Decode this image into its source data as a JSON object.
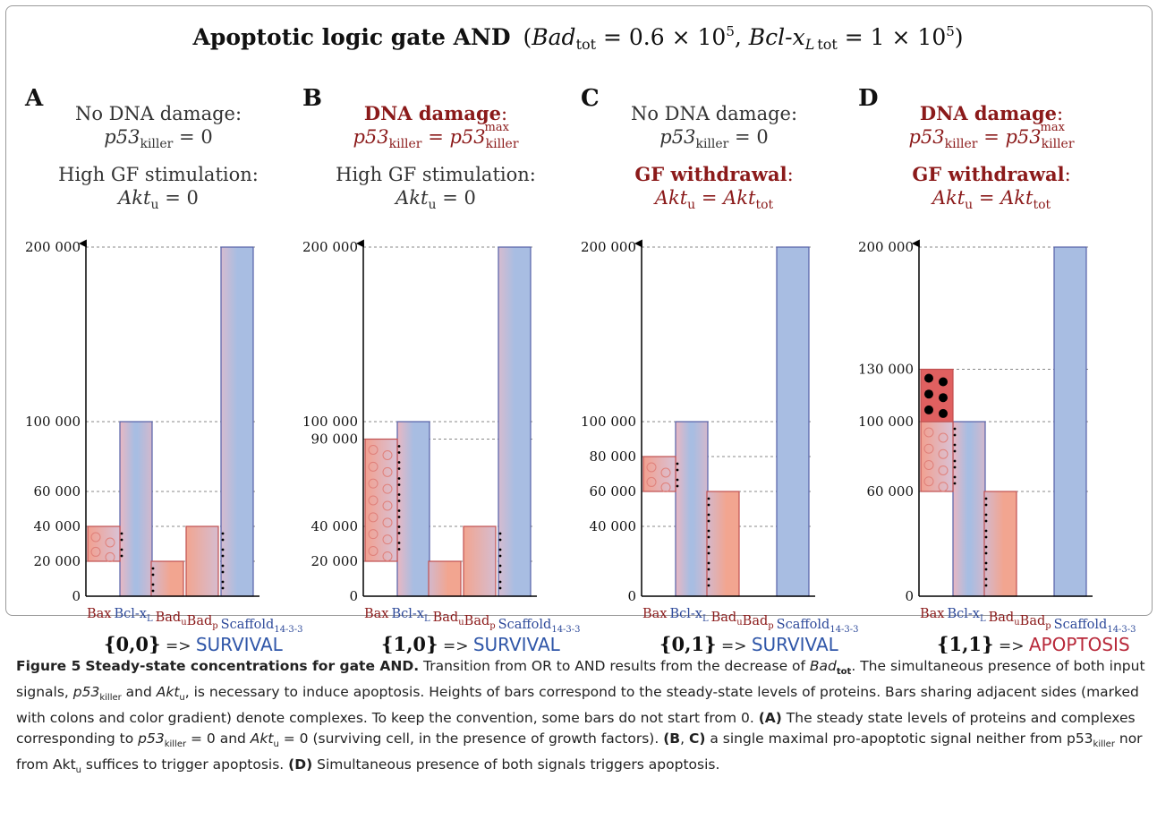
{
  "figure": {
    "title_main": "Apoptotic logic gate AND",
    "title_params": {
      "bad_sym": "Bad",
      "bad_sub": "tot",
      "bad_val": " = 0.6 × 10",
      "bad_exp": "5",
      "bcl_sym": "Bcl-x",
      "bcl_sub_L": "L",
      "bcl_sub_tot": "tot",
      "bcl_val": " = 1 × 10",
      "bcl_exp": "5"
    }
  },
  "colors": {
    "blue": "#a8bde2",
    "blue_stroke": "#5560a8",
    "red_light": "#f1a596",
    "red_dark": "#e06060",
    "red_stroke": "#c05050",
    "dark_red_text": "#8b1a1a",
    "blue_text": "#2e4a9a",
    "axis": "#000000",
    "grid": "#888888"
  },
  "panels": [
    {
      "letter": "A",
      "cond1": {
        "label": "No DNA damage:",
        "eq_lhs": "p53",
        "eq_lhs_sub": "killer",
        "eq_rhs": "0",
        "highlight": false
      },
      "cond2": {
        "label": "High GF stimulation:",
        "eq_lhs": "Akt",
        "eq_lhs_sub": "u",
        "eq_rhs": "0",
        "highlight": false
      },
      "result": {
        "input": "{0,0}",
        "arrow": "=>",
        "outcome": "SURVIVAL",
        "apoptosis": false
      }
    },
    {
      "letter": "B",
      "cond1": {
        "label": "DNA damage",
        "eq_lhs": "p53",
        "eq_lhs_sub": "killer",
        "eq_rhs": "p53",
        "eq_rhs_sub": "killer",
        "eq_rhs_sup": "max",
        "highlight": true
      },
      "cond2": {
        "label": "High GF stimulation:",
        "eq_lhs": "Akt",
        "eq_lhs_sub": "u",
        "eq_rhs": "0",
        "highlight": false
      },
      "result": {
        "input": "{1,0}",
        "arrow": "=>",
        "outcome": "SURVIVAL",
        "apoptosis": false
      }
    },
    {
      "letter": "C",
      "cond1": {
        "label": "No DNA damage:",
        "eq_lhs": "p53",
        "eq_lhs_sub": "killer",
        "eq_rhs": "0",
        "highlight": false
      },
      "cond2": {
        "label": "GF withdrawal",
        "eq_lhs": "Akt",
        "eq_lhs_sub": "u",
        "eq_rhs": "Akt",
        "eq_rhs_sub": "tot",
        "highlight": true
      },
      "result": {
        "input": "{0,1}",
        "arrow": "=>",
        "outcome": "SURVIVAL",
        "apoptosis": false
      }
    },
    {
      "letter": "D",
      "cond1": {
        "label": "DNA damage",
        "eq_lhs": "p53",
        "eq_lhs_sub": "killer",
        "eq_rhs": "p53",
        "eq_rhs_sub": "killer",
        "eq_rhs_sup": "max",
        "highlight": true
      },
      "cond2": {
        "label": "GF withdrawal",
        "eq_lhs": "Akt",
        "eq_lhs_sub": "u",
        "eq_rhs": "Akt",
        "eq_rhs_sub": "tot",
        "highlight": true
      },
      "result": {
        "input": "{1,1}",
        "arrow": "=>",
        "outcome": "APOPTOSIS",
        "apoptosis": true
      }
    }
  ],
  "x_labels": [
    {
      "text": "Bax",
      "sub": "",
      "color": "red"
    },
    {
      "text": "Bcl-x",
      "sub": "L",
      "color": "blue"
    },
    {
      "text": "Bad",
      "sub": "u",
      "color": "red"
    },
    {
      "text": "Bad",
      "sub": "p",
      "color": "red"
    },
    {
      "text": "Scaffold",
      "sub": "14-3-3",
      "color": "blue"
    }
  ],
  "chart_data": [
    {
      "type": "bar",
      "panel": "A",
      "ylim": [
        0,
        200000
      ],
      "y_ticks": [
        {
          "value": 0,
          "label": "0"
        },
        {
          "value": 20000,
          "label": "20 000"
        },
        {
          "value": 40000,
          "label": "40 000"
        },
        {
          "value": 60000,
          "label": "60 000"
        },
        {
          "value": 100000,
          "label": "100 000"
        },
        {
          "value": 200000,
          "label": "200 000"
        }
      ],
      "bars": [
        {
          "name": "Bax",
          "from": 20000,
          "to": 40000,
          "color": "red",
          "dots": "circles"
        },
        {
          "name": "Bcl-xL",
          "from": 0,
          "to": 100000,
          "color": "blue"
        },
        {
          "name": "Bad_u",
          "from": 0,
          "to": 20000,
          "color": "red"
        },
        {
          "name": "Bad_p",
          "from": 0,
          "to": 40000,
          "color": "red"
        },
        {
          "name": "Scaffold14-3-3",
          "from": 0,
          "to": 200000,
          "color": "blue"
        }
      ],
      "complexes": [
        [
          "Bax",
          "Bcl-xL"
        ],
        [
          "Bcl-xL",
          "Bad_u"
        ],
        [
          "Bad_p",
          "Scaffold14-3-3"
        ]
      ]
    },
    {
      "type": "bar",
      "panel": "B",
      "ylim": [
        0,
        200000
      ],
      "y_ticks": [
        {
          "value": 0,
          "label": "0"
        },
        {
          "value": 20000,
          "label": "20 000"
        },
        {
          "value": 40000,
          "label": "40 000"
        },
        {
          "value": 90000,
          "label": "90 000"
        },
        {
          "value": 100000,
          "label": "100 000"
        },
        {
          "value": 200000,
          "label": "200 000"
        }
      ],
      "bars": [
        {
          "name": "Bax",
          "from": 20000,
          "to": 90000,
          "color": "red",
          "dots": "circles"
        },
        {
          "name": "Bcl-xL",
          "from": 0,
          "to": 100000,
          "color": "blue"
        },
        {
          "name": "Bad_u",
          "from": 0,
          "to": 20000,
          "color": "red"
        },
        {
          "name": "Bad_p",
          "from": 0,
          "to": 40000,
          "color": "red"
        },
        {
          "name": "Scaffold14-3-3",
          "from": 0,
          "to": 200000,
          "color": "blue"
        }
      ],
      "complexes": [
        [
          "Bax",
          "Bcl-xL"
        ],
        [
          "Bad_p",
          "Scaffold14-3-3"
        ]
      ]
    },
    {
      "type": "bar",
      "panel": "C",
      "ylim": [
        0,
        200000
      ],
      "y_ticks": [
        {
          "value": 0,
          "label": "0"
        },
        {
          "value": 40000,
          "label": "40 000"
        },
        {
          "value": 60000,
          "label": "60 000"
        },
        {
          "value": 80000,
          "label": "80 000"
        },
        {
          "value": 100000,
          "label": "100 000"
        },
        {
          "value": 200000,
          "label": "200 000"
        }
      ],
      "bars": [
        {
          "name": "Bax",
          "from": 60000,
          "to": 80000,
          "color": "red",
          "dots": "circles"
        },
        {
          "name": "Bcl-xL",
          "from": 0,
          "to": 100000,
          "color": "blue"
        },
        {
          "name": "Bad_u",
          "from": 0,
          "to": 60000,
          "color": "red"
        },
        {
          "name": "Bad_p",
          "from": 0,
          "to": 0,
          "color": "red"
        },
        {
          "name": "Scaffold14-3-3",
          "from": 0,
          "to": 200000,
          "color": "blue"
        }
      ],
      "complexes": [
        [
          "Bax",
          "Bcl-xL"
        ],
        [
          "Bcl-xL",
          "Bad_u"
        ]
      ]
    },
    {
      "type": "bar",
      "panel": "D",
      "ylim": [
        0,
        200000
      ],
      "y_ticks": [
        {
          "value": 0,
          "label": "0"
        },
        {
          "value": 60000,
          "label": "60 000"
        },
        {
          "value": 100000,
          "label": "100 000"
        },
        {
          "value": 130000,
          "label": "130 000"
        },
        {
          "value": 200000,
          "label": "200 000"
        }
      ],
      "bars": [
        {
          "name": "Bax",
          "from": 60000,
          "to": 100000,
          "color": "red",
          "dots": "circles"
        },
        {
          "name": "Bax_free",
          "from": 100000,
          "to": 130000,
          "color": "red_dark",
          "dots": "filled"
        },
        {
          "name": "Bcl-xL",
          "from": 0,
          "to": 100000,
          "color": "blue"
        },
        {
          "name": "Bad_u",
          "from": 0,
          "to": 60000,
          "color": "red"
        },
        {
          "name": "Bad_p",
          "from": 0,
          "to": 0,
          "color": "red"
        },
        {
          "name": "Scaffold14-3-3",
          "from": 0,
          "to": 200000,
          "color": "blue"
        }
      ],
      "complexes": [
        [
          "Bax",
          "Bcl-xL"
        ],
        [
          "Bcl-xL",
          "Bad_u"
        ]
      ]
    }
  ],
  "caption": {
    "fig_label": "Figure 5",
    "fig_title": "Steady-state concentrations for gate AND.",
    "s1a": " Transition from OR to AND results from the decrease of ",
    "bad_sym": "Bad",
    "bad_sub": "tot",
    "s1b": ". The simultaneous presence of both input signals, ",
    "p53": "p53",
    "killer": "killer",
    "and_word": " and ",
    "akt": "Akt",
    "u": "u",
    "s1c": ", is necessary to induce apoptosis. Heights of bars correspond to the steady-state levels of proteins. Bars sharing adjacent sides (marked with colons and color gradient) denote complexes. To keep the convention, some bars do not start from 0. ",
    "lblA": "(A)",
    "s2a": " The steady state levels of proteins and complexes corresponding to ",
    "eq0": " = 0",
    "s2b": " (surviving cell, in the presence of growth factors). ",
    "lblB": "(B",
    "comma": ", ",
    "lblC": "C)",
    "s3a": " a single maximal pro-apoptotic signal neither from p53",
    "s3b": " nor from Akt",
    "s3c": " suffices to trigger apoptosis. ",
    "lblD": "(D)",
    "s4": " Simultaneous presence of both signals triggers apoptosis."
  }
}
